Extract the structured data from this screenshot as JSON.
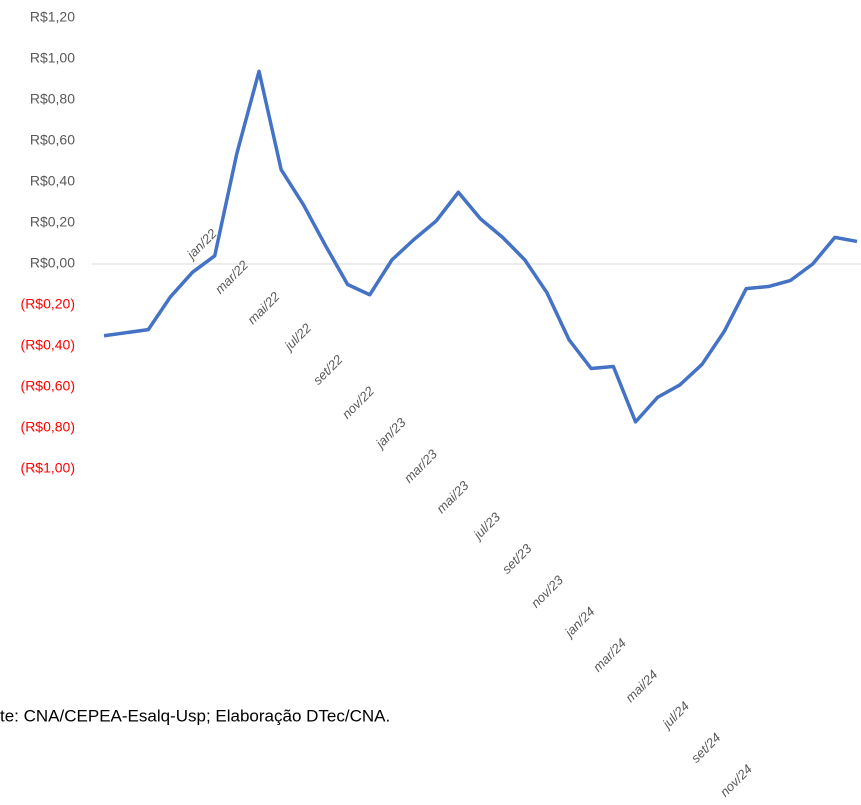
{
  "chart_data": {
    "type": "line",
    "categories": [
      "jan/22",
      null,
      "mar/22",
      null,
      "mai/22",
      null,
      "jul/22",
      null,
      "set/22",
      null,
      "nov/22",
      null,
      "jan/23",
      null,
      "mar/23",
      null,
      "mai/23",
      null,
      "jul/23",
      null,
      "set/23",
      null,
      "nov/23",
      null,
      "jan/24",
      null,
      "mar/24",
      null,
      "mai/24",
      null,
      "jul/24",
      null,
      "set/24",
      null,
      "nov/24"
    ],
    "series": [
      {
        "name": null,
        "color": "#4472c4",
        "values": [
          -0.35,
          -0.335,
          -0.32,
          -0.16,
          -0.04,
          0.04,
          0.54,
          0.94,
          0.46,
          0.29,
          0.09,
          -0.1,
          -0.15,
          0.02,
          0.12,
          0.21,
          0.35,
          0.22,
          0.13,
          0.02,
          -0.14,
          -0.37,
          -0.51,
          -0.5,
          -0.77,
          -0.65,
          -0.59,
          -0.49,
          -0.33,
          -0.12,
          -0.11,
          -0.08,
          0.0,
          0.13,
          0.11
        ]
      }
    ],
    "ylim": [
      -1,
      1.2
    ],
    "yticks": [
      {
        "value": -1,
        "label": "(R$1,00)"
      },
      {
        "value": -0.8,
        "label": "(R$0,80)"
      },
      {
        "value": -0.6,
        "label": "(R$0,60)"
      },
      {
        "value": -0.4,
        "label": "(R$0,40)"
      },
      {
        "value": -0.2,
        "label": "(R$0,20)"
      },
      {
        "value": 0,
        "label": "R$0,00"
      },
      {
        "value": 0.2,
        "label": "R$0,20"
      },
      {
        "value": 0.4,
        "label": "R$0,40"
      },
      {
        "value": 0.6,
        "label": "R$0,60"
      },
      {
        "value": 0.8,
        "label": "R$0,80"
      },
      {
        "value": 1,
        "label": "R$1,00"
      },
      {
        "value": 1.2,
        "label": "R$1,20"
      }
    ],
    "ytick_color": "#595959",
    "ytick_negative_color": "#ff0000",
    "axis_color": "#d9d9d9",
    "grid": false,
    "source": "te: CNA/CEPEA-Esalq-Usp; Elaboração DTec/CNA."
  }
}
